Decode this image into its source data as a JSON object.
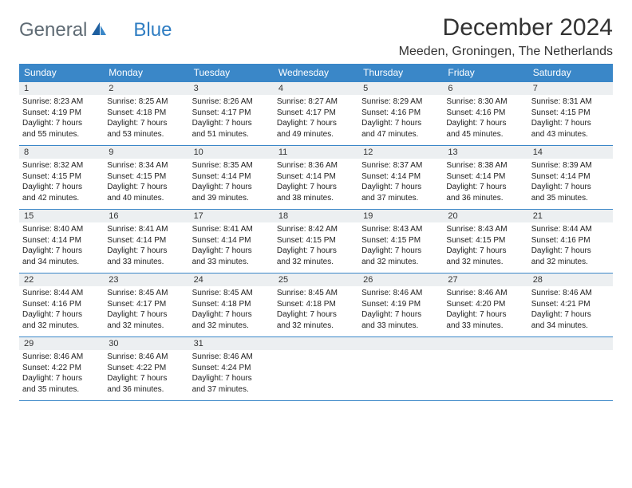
{
  "logo": {
    "general": "General",
    "blue": "Blue"
  },
  "title": "December 2024",
  "location": "Meeden, Groningen, The Netherlands",
  "header_bg": "#3a87c8",
  "daynum_bg": "#eceff1",
  "weekdays": [
    "Sunday",
    "Monday",
    "Tuesday",
    "Wednesday",
    "Thursday",
    "Friday",
    "Saturday"
  ],
  "weeks": [
    {
      "nums": [
        "1",
        "2",
        "3",
        "4",
        "5",
        "6",
        "7"
      ],
      "details": [
        {
          "sunrise": "8:23 AM",
          "sunset": "4:19 PM",
          "dh": "7",
          "dm": "55"
        },
        {
          "sunrise": "8:25 AM",
          "sunset": "4:18 PM",
          "dh": "7",
          "dm": "53"
        },
        {
          "sunrise": "8:26 AM",
          "sunset": "4:17 PM",
          "dh": "7",
          "dm": "51"
        },
        {
          "sunrise": "8:27 AM",
          "sunset": "4:17 PM",
          "dh": "7",
          "dm": "49"
        },
        {
          "sunrise": "8:29 AM",
          "sunset": "4:16 PM",
          "dh": "7",
          "dm": "47"
        },
        {
          "sunrise": "8:30 AM",
          "sunset": "4:16 PM",
          "dh": "7",
          "dm": "45"
        },
        {
          "sunrise": "8:31 AM",
          "sunset": "4:15 PM",
          "dh": "7",
          "dm": "43"
        }
      ]
    },
    {
      "nums": [
        "8",
        "9",
        "10",
        "11",
        "12",
        "13",
        "14"
      ],
      "details": [
        {
          "sunrise": "8:32 AM",
          "sunset": "4:15 PM",
          "dh": "7",
          "dm": "42"
        },
        {
          "sunrise": "8:34 AM",
          "sunset": "4:15 PM",
          "dh": "7",
          "dm": "40"
        },
        {
          "sunrise": "8:35 AM",
          "sunset": "4:14 PM",
          "dh": "7",
          "dm": "39"
        },
        {
          "sunrise": "8:36 AM",
          "sunset": "4:14 PM",
          "dh": "7",
          "dm": "38"
        },
        {
          "sunrise": "8:37 AM",
          "sunset": "4:14 PM",
          "dh": "7",
          "dm": "37"
        },
        {
          "sunrise": "8:38 AM",
          "sunset": "4:14 PM",
          "dh": "7",
          "dm": "36"
        },
        {
          "sunrise": "8:39 AM",
          "sunset": "4:14 PM",
          "dh": "7",
          "dm": "35"
        }
      ]
    },
    {
      "nums": [
        "15",
        "16",
        "17",
        "18",
        "19",
        "20",
        "21"
      ],
      "details": [
        {
          "sunrise": "8:40 AM",
          "sunset": "4:14 PM",
          "dh": "7",
          "dm": "34"
        },
        {
          "sunrise": "8:41 AM",
          "sunset": "4:14 PM",
          "dh": "7",
          "dm": "33"
        },
        {
          "sunrise": "8:41 AM",
          "sunset": "4:14 PM",
          "dh": "7",
          "dm": "33"
        },
        {
          "sunrise": "8:42 AM",
          "sunset": "4:15 PM",
          "dh": "7",
          "dm": "32"
        },
        {
          "sunrise": "8:43 AM",
          "sunset": "4:15 PM",
          "dh": "7",
          "dm": "32"
        },
        {
          "sunrise": "8:43 AM",
          "sunset": "4:15 PM",
          "dh": "7",
          "dm": "32"
        },
        {
          "sunrise": "8:44 AM",
          "sunset": "4:16 PM",
          "dh": "7",
          "dm": "32"
        }
      ]
    },
    {
      "nums": [
        "22",
        "23",
        "24",
        "25",
        "26",
        "27",
        "28"
      ],
      "details": [
        {
          "sunrise": "8:44 AM",
          "sunset": "4:16 PM",
          "dh": "7",
          "dm": "32"
        },
        {
          "sunrise": "8:45 AM",
          "sunset": "4:17 PM",
          "dh": "7",
          "dm": "32"
        },
        {
          "sunrise": "8:45 AM",
          "sunset": "4:18 PM",
          "dh": "7",
          "dm": "32"
        },
        {
          "sunrise": "8:45 AM",
          "sunset": "4:18 PM",
          "dh": "7",
          "dm": "32"
        },
        {
          "sunrise": "8:46 AM",
          "sunset": "4:19 PM",
          "dh": "7",
          "dm": "33"
        },
        {
          "sunrise": "8:46 AM",
          "sunset": "4:20 PM",
          "dh": "7",
          "dm": "33"
        },
        {
          "sunrise": "8:46 AM",
          "sunset": "4:21 PM",
          "dh": "7",
          "dm": "34"
        }
      ]
    },
    {
      "nums": [
        "29",
        "30",
        "31",
        "",
        "",
        "",
        ""
      ],
      "details": [
        {
          "sunrise": "8:46 AM",
          "sunset": "4:22 PM",
          "dh": "7",
          "dm": "35"
        },
        {
          "sunrise": "8:46 AM",
          "sunset": "4:22 PM",
          "dh": "7",
          "dm": "36"
        },
        {
          "sunrise": "8:46 AM",
          "sunset": "4:24 PM",
          "dh": "7",
          "dm": "37"
        },
        null,
        null,
        null,
        null
      ]
    }
  ]
}
